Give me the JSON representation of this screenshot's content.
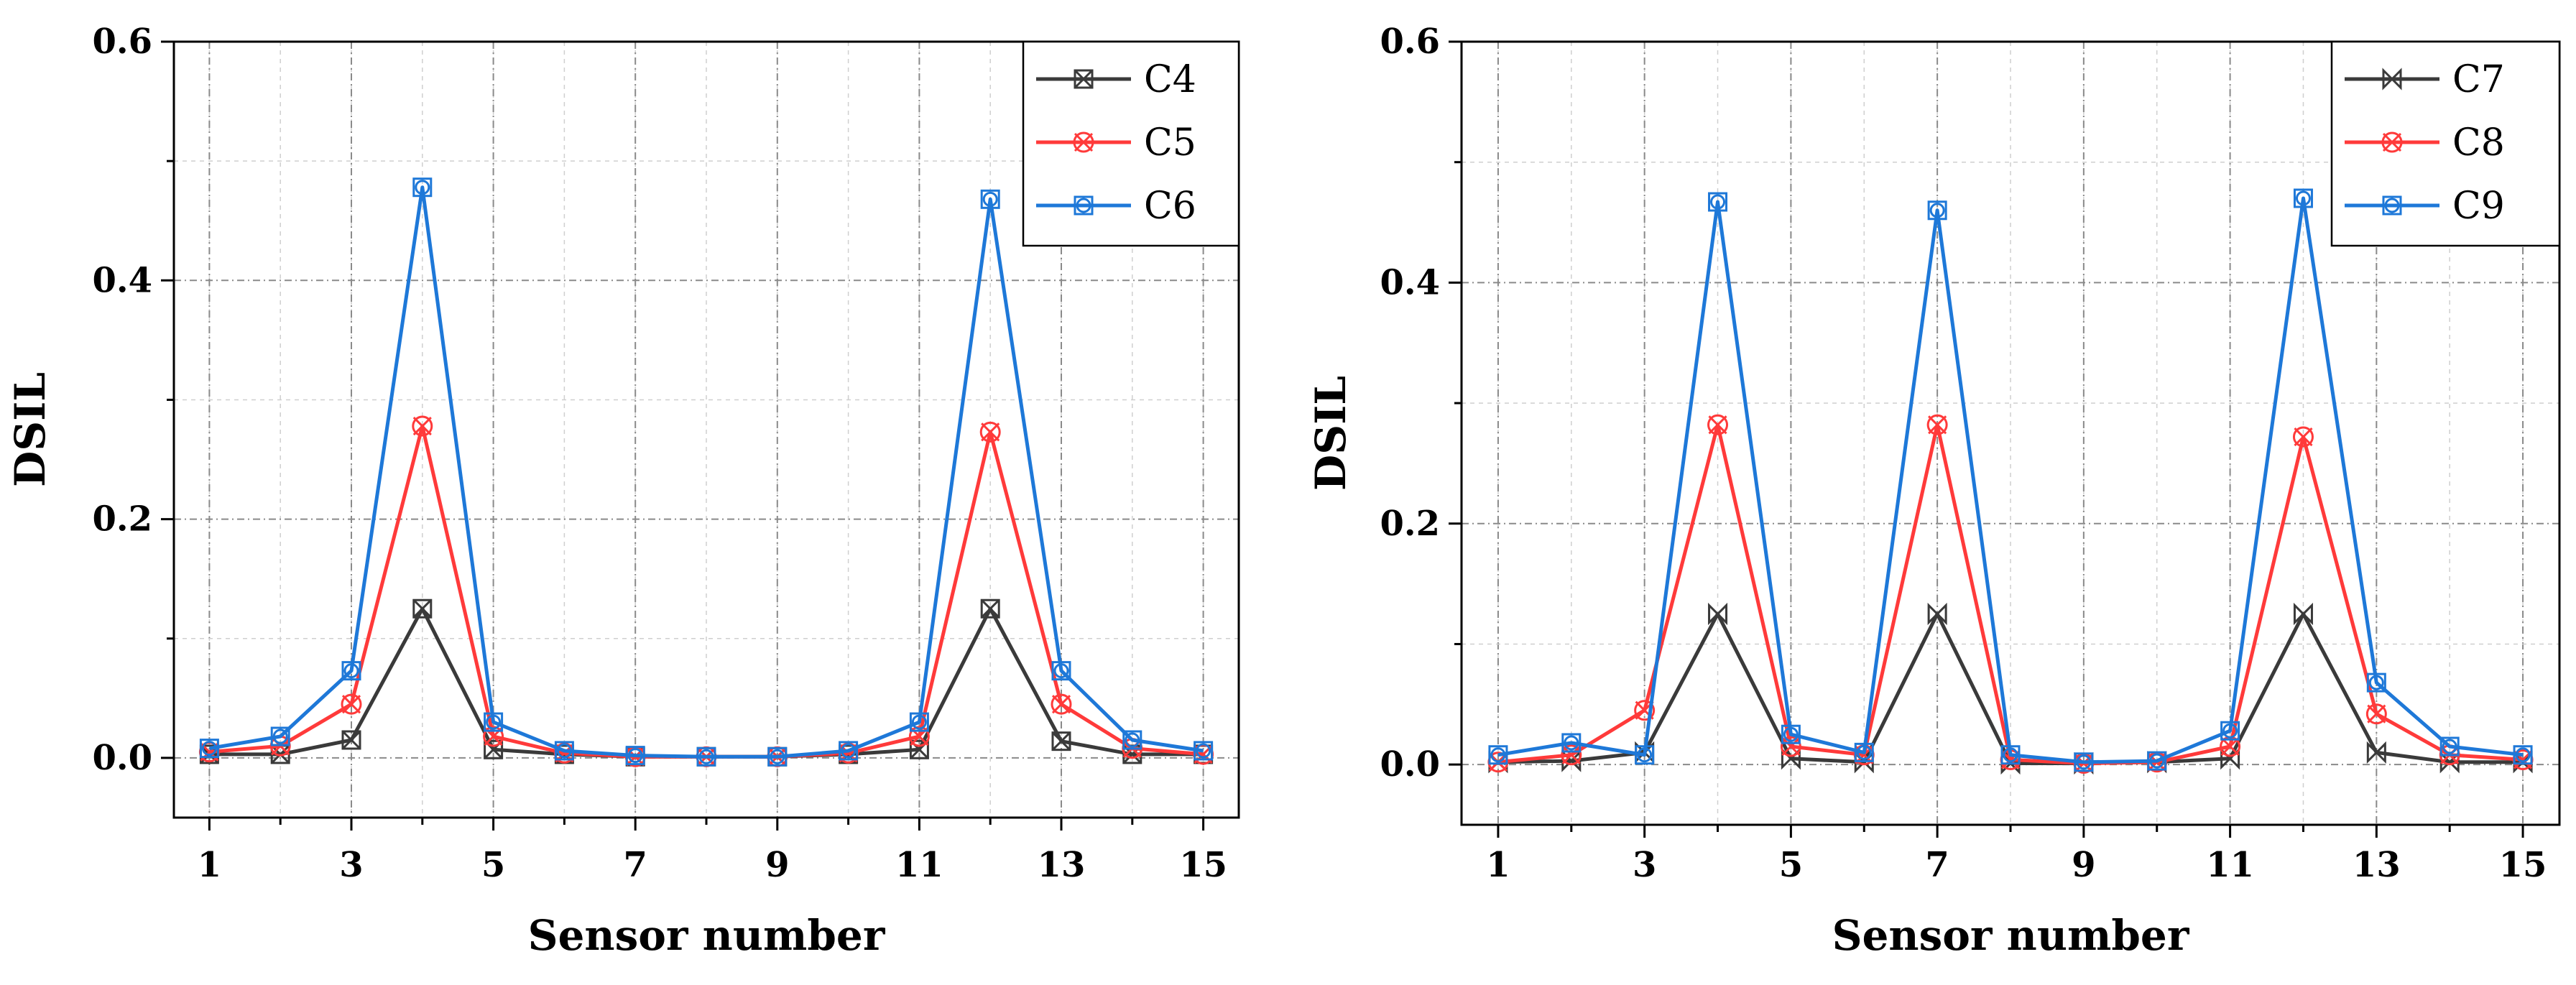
{
  "figure": {
    "description_free": true
  },
  "chart_data": [
    {
      "type": "line",
      "id": "left",
      "xlabel": "Sensor number",
      "ylabel": "DSIL",
      "xlim": [
        0.5,
        15.5
      ],
      "ylim": [
        -0.05,
        0.6
      ],
      "xticks": [
        1,
        3,
        5,
        7,
        9,
        11,
        13,
        15
      ],
      "xtick_labels": [
        "1",
        "3",
        "5",
        "7",
        "9",
        "11",
        "13",
        "15"
      ],
      "yticks": [
        0.0,
        0.2,
        0.4,
        0.6
      ],
      "ytick_labels": [
        "0.0",
        "0.2",
        "0.4",
        "0.6"
      ],
      "x": [
        1,
        2,
        3,
        4,
        5,
        6,
        7,
        8,
        9,
        10,
        11,
        12,
        13,
        14,
        15
      ],
      "legend_position": "top-right",
      "series": [
        {
          "name": "C4",
          "color": "#3a3a3a",
          "marker": "square-x",
          "values": [
            0.003,
            0.003,
            0.015,
            0.125,
            0.007,
            0.003,
            0.001,
            0.001,
            0.001,
            0.003,
            0.007,
            0.125,
            0.014,
            0.003,
            0.003
          ]
        },
        {
          "name": "C5",
          "color": "#ff3a3a",
          "marker": "circle-x",
          "values": [
            0.005,
            0.01,
            0.045,
            0.278,
            0.018,
            0.004,
            0.001,
            0.001,
            0.001,
            0.004,
            0.018,
            0.273,
            0.045,
            0.008,
            0.003
          ]
        },
        {
          "name": "C6",
          "color": "#1e78d8",
          "marker": "square-circle",
          "values": [
            0.008,
            0.018,
            0.073,
            0.478,
            0.03,
            0.006,
            0.002,
            0.001,
            0.001,
            0.006,
            0.03,
            0.468,
            0.073,
            0.015,
            0.006
          ]
        }
      ]
    },
    {
      "type": "line",
      "id": "right",
      "xlabel": "Sensor number",
      "ylabel": "DSIL",
      "xlim": [
        0.5,
        15.5
      ],
      "ylim": [
        -0.05,
        0.6
      ],
      "xticks": [
        1,
        3,
        5,
        7,
        9,
        11,
        13,
        15
      ],
      "xtick_labels": [
        "1",
        "3",
        "5",
        "7",
        "9",
        "11",
        "13",
        "15"
      ],
      "yticks": [
        0.0,
        0.2,
        0.4,
        0.6
      ],
      "ytick_labels": [
        "0.0",
        "0.2",
        "0.4",
        "0.6"
      ],
      "x": [
        1,
        2,
        3,
        4,
        5,
        6,
        7,
        8,
        9,
        10,
        11,
        12,
        13,
        14,
        15
      ],
      "legend_position": "top-right",
      "series": [
        {
          "name": "C7",
          "color": "#3a3a3a",
          "marker": "bowtie",
          "values": [
            0.002,
            0.003,
            0.01,
            0.125,
            0.005,
            0.002,
            0.125,
            0.001,
            0.001,
            0.002,
            0.005,
            0.125,
            0.01,
            0.002,
            0.002
          ]
        },
        {
          "name": "C8",
          "color": "#ff3a3a",
          "marker": "circle-x",
          "values": [
            0.002,
            0.008,
            0.045,
            0.282,
            0.015,
            0.008,
            0.282,
            0.004,
            0.001,
            0.002,
            0.015,
            0.272,
            0.042,
            0.008,
            0.004
          ]
        },
        {
          "name": "C9",
          "color": "#1e78d8",
          "marker": "square-circle",
          "values": [
            0.008,
            0.018,
            0.008,
            0.467,
            0.025,
            0.01,
            0.46,
            0.008,
            0.002,
            0.003,
            0.028,
            0.47,
            0.068,
            0.015,
            0.008
          ]
        }
      ]
    }
  ]
}
